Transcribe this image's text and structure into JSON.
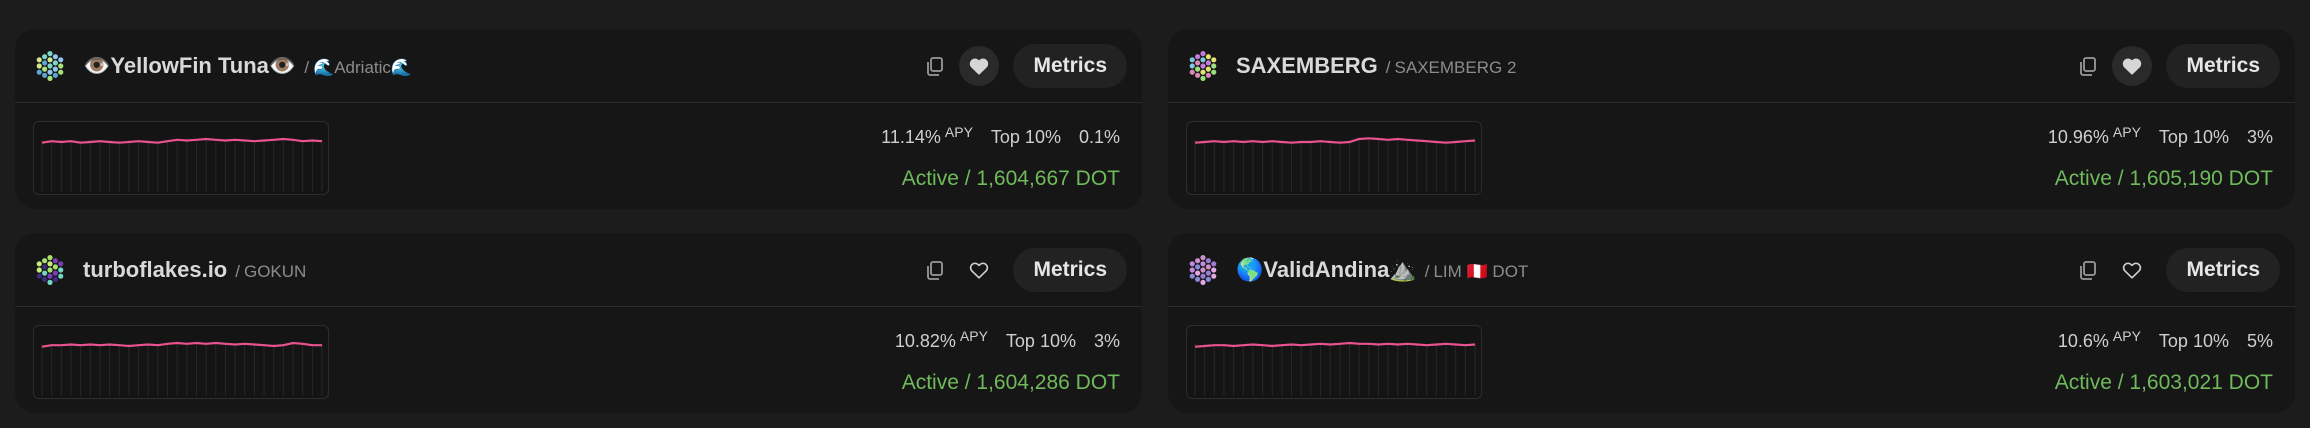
{
  "accent_color": "#e8538f",
  "active_color": "#6fba5a",
  "validators": [
    {
      "name_prefix": "👁️",
      "name": "YellowFin Tuna",
      "name_suffix": "👁️",
      "sub": "🌊Adriatic🌊",
      "favorite": true,
      "apy_value": "11.14%",
      "apy_label": "APY",
      "rank": "Top 10%",
      "commission": "0.1%",
      "status": "Active / 1,604,667 DOT",
      "metrics_label": "Metrics",
      "identicon_colors": [
        "#7ed4c8",
        "#8fc7f0",
        "#a7e37b",
        "#5aa8d6",
        "#cfe88a"
      ],
      "sparkline": [
        0.72,
        0.74,
        0.73,
        0.74,
        0.72,
        0.73,
        0.74,
        0.73,
        0.72,
        0.73,
        0.74,
        0.73,
        0.72,
        0.74,
        0.76,
        0.75,
        0.76,
        0.77,
        0.76,
        0.75,
        0.76,
        0.75,
        0.74,
        0.75,
        0.76,
        0.77,
        0.76,
        0.74,
        0.75,
        0.74
      ]
    },
    {
      "name_prefix": "",
      "name": "SAXEMBERG",
      "name_suffix": "",
      "sub": "SAXEMBERG 2",
      "favorite": true,
      "apy_value": "10.96%",
      "apy_label": "APY",
      "rank": "Top 10%",
      "commission": "3%",
      "status": "Active / 1,605,190 DOT",
      "metrics_label": "Metrics",
      "identicon_colors": [
        "#c67ad9",
        "#e3e36f",
        "#9be07a",
        "#d98ab6",
        "#7ec8e0"
      ],
      "sparkline": [
        0.72,
        0.73,
        0.74,
        0.73,
        0.74,
        0.73,
        0.74,
        0.73,
        0.74,
        0.73,
        0.72,
        0.73,
        0.73,
        0.74,
        0.73,
        0.72,
        0.73,
        0.77,
        0.78,
        0.77,
        0.76,
        0.77,
        0.76,
        0.75,
        0.74,
        0.73,
        0.72,
        0.73,
        0.74,
        0.75
      ]
    },
    {
      "name_prefix": "",
      "name": "turboflakes.io",
      "name_suffix": "",
      "sub": "GOKUN",
      "favorite": false,
      "apy_value": "10.82%",
      "apy_label": "APY",
      "rank": "Top 10%",
      "commission": "3%",
      "status": "Active / 1,604,286 DOT",
      "metrics_label": "Metrics",
      "identicon_colors": [
        "#a8e06f",
        "#7a3fb8",
        "#6fd9c4",
        "#3b2d80",
        "#c7ec7a"
      ],
      "sparkline": [
        0.72,
        0.74,
        0.74,
        0.75,
        0.74,
        0.75,
        0.74,
        0.75,
        0.74,
        0.73,
        0.74,
        0.75,
        0.74,
        0.76,
        0.77,
        0.76,
        0.77,
        0.76,
        0.77,
        0.76,
        0.75,
        0.76,
        0.75,
        0.74,
        0.73,
        0.74,
        0.77,
        0.76,
        0.74,
        0.74
      ]
    },
    {
      "name_prefix": "🌎",
      "name": "ValidAndina",
      "name_suffix": "⛰️",
      "sub": "LIM 🇵🇪 DOT",
      "favorite": false,
      "apy_value": "10.6%",
      "apy_label": "APY",
      "rank": "Top 10%",
      "commission": "5%",
      "status": "Active / 1,603,021 DOT",
      "metrics_label": "Metrics",
      "identicon_colors": [
        "#d090d0",
        "#9c7bd6",
        "#e3a7e3",
        "#8a8ad9",
        "#c08ae0"
      ],
      "sparkline": [
        0.72,
        0.73,
        0.74,
        0.74,
        0.73,
        0.74,
        0.75,
        0.74,
        0.73,
        0.74,
        0.75,
        0.74,
        0.75,
        0.76,
        0.75,
        0.76,
        0.77,
        0.76,
        0.76,
        0.75,
        0.76,
        0.75,
        0.76,
        0.75,
        0.74,
        0.75,
        0.76,
        0.75,
        0.74,
        0.75
      ]
    }
  ]
}
